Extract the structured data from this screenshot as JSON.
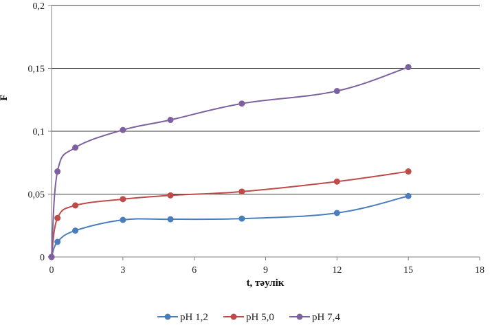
{
  "chart_data": {
    "type": "line",
    "title": "",
    "xlabel": "t, тәулік",
    "ylabel": "F",
    "xlim": [
      0,
      18
    ],
    "ylim": [
      0,
      0.2
    ],
    "x_ticks": [
      0,
      3,
      6,
      9,
      12,
      15,
      18
    ],
    "y_ticks": [
      0,
      0.05,
      0.1,
      0.15,
      0.2
    ],
    "x_tick_labels": [
      "0",
      "3",
      "6",
      "9",
      "12",
      "15",
      "18"
    ],
    "y_tick_labels": [
      "0",
      "0,05",
      "0,1",
      "0,15",
      "0,2"
    ],
    "grid": "horizontal",
    "legend_position": "bottom",
    "x": [
      0,
      0.25,
      1,
      3,
      5,
      8,
      12,
      15
    ],
    "series": [
      {
        "name": "pH 1,2",
        "color": "#4a7ebb",
        "values": [
          0.0,
          0.012,
          0.021,
          0.0295,
          0.03,
          0.0305,
          0.035,
          0.0485
        ]
      },
      {
        "name": "pH 5,0",
        "color": "#be4b48",
        "values": [
          0.0,
          0.031,
          0.041,
          0.046,
          0.049,
          0.052,
          0.06,
          0.068
        ]
      },
      {
        "name": "pH 7,4",
        "color": "#7d60a0",
        "values": [
          0.0,
          0.068,
          0.087,
          0.101,
          0.109,
          0.122,
          0.132,
          0.151
        ]
      }
    ]
  }
}
